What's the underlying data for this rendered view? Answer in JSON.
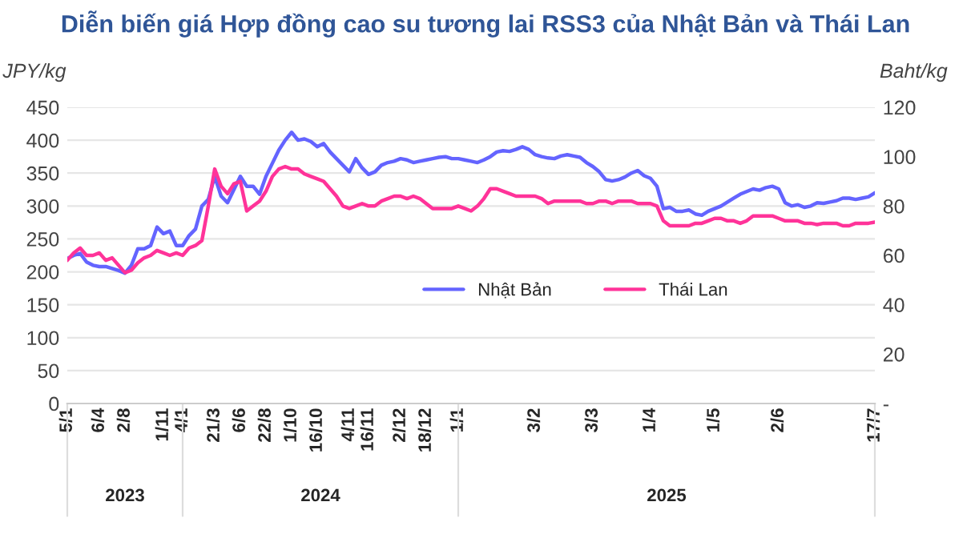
{
  "chart_data": {
    "type": "line",
    "title": "Diễn biến giá Hợp đồng cao su tương lai RSS3 của Nhật Bản và Thái Lan",
    "ylabel": "JPY/kg",
    "y2label": "Baht/kg",
    "categories": [
      "5/1",
      null,
      null,
      null,
      null,
      "6/4",
      null,
      null,
      null,
      "2/8",
      null,
      null,
      null,
      null,
      null,
      "1/11",
      null,
      null,
      "4/1",
      null,
      null,
      null,
      null,
      "21/3",
      null,
      null,
      null,
      "6/6",
      null,
      null,
      null,
      "22/8",
      null,
      null,
      null,
      "1/10",
      null,
      null,
      null,
      "16/10",
      null,
      null,
      null,
      null,
      "4/11",
      null,
      null,
      "16/11",
      null,
      null,
      null,
      null,
      "2/12",
      null,
      null,
      null,
      "18/12",
      null,
      null,
      null,
      null,
      "1/1",
      null,
      null,
      null,
      null,
      null,
      null,
      null,
      null,
      null,
      null,
      null,
      "3/2",
      null,
      null,
      null,
      null,
      null,
      null,
      null,
      null,
      "3/3",
      null,
      null,
      null,
      null,
      null,
      null,
      null,
      null,
      "1/4",
      null,
      null,
      null,
      null,
      null,
      null,
      null,
      null,
      null,
      "1/5",
      null,
      null,
      null,
      null,
      null,
      null,
      null,
      null,
      null,
      "2/6",
      null,
      null,
      null,
      null,
      null,
      null,
      null,
      null,
      null,
      null,
      null,
      null,
      null,
      null,
      "17/7"
    ],
    "annotations": [
      "2023",
      "2024",
      "2025"
    ],
    "series": [
      {
        "name": "Nhật Bản",
        "color": "#6464ff",
        "values": [
          220,
          225,
          228,
          215,
          210,
          208,
          208,
          205,
          202,
          198,
          210,
          235,
          235,
          240,
          268,
          258,
          262,
          240,
          240,
          255,
          265,
          300,
          310,
          345,
          315,
          305,
          325,
          345,
          330,
          330,
          318,
          345,
          365,
          385,
          400,
          412,
          400,
          402,
          398,
          390,
          395,
          382,
          372,
          362,
          352,
          372,
          358,
          348,
          352,
          362,
          366,
          368,
          372,
          370,
          366,
          368,
          370,
          372,
          374,
          375,
          372,
          372,
          370,
          368,
          366,
          370,
          375,
          382,
          384,
          383,
          386,
          390,
          386,
          378,
          375,
          373,
          372,
          376,
          378,
          376,
          374,
          366,
          360,
          352,
          340,
          338,
          340,
          344,
          350,
          354,
          346,
          342,
          330,
          296,
          298,
          292,
          292,
          294,
          288,
          286,
          292,
          296,
          300,
          306,
          312,
          318,
          322,
          326,
          324,
          328,
          330,
          326,
          305,
          300,
          302,
          298,
          300,
          305,
          304,
          306,
          308,
          312,
          312,
          310,
          312,
          314,
          320
        ]
      },
      {
        "name": "Thái Lan",
        "color": "#ff3399",
        "axis": "y2",
        "values": [
          58,
          61,
          63,
          60,
          60,
          61,
          58,
          59,
          56,
          53,
          54,
          57,
          59,
          60,
          62,
          61,
          60,
          61,
          60,
          63,
          64,
          66,
          80,
          95,
          88,
          85,
          89,
          90,
          78,
          80,
          82,
          86,
          92,
          95,
          96,
          95,
          95,
          93,
          92,
          91,
          90,
          87,
          84,
          80,
          79,
          80,
          81,
          80,
          80,
          82,
          83,
          84,
          84,
          83,
          84,
          83,
          81,
          79,
          79,
          79,
          79,
          80,
          79,
          78,
          80,
          83,
          87,
          87,
          86,
          85,
          84,
          84,
          84,
          84,
          83,
          81,
          82,
          82,
          82,
          82,
          82,
          81,
          81,
          82,
          82,
          81,
          82,
          82,
          82,
          81,
          81,
          81,
          80,
          74,
          72,
          72,
          72,
          72,
          73,
          73,
          74,
          75,
          75,
          74,
          74,
          73,
          74,
          76,
          76,
          76,
          76,
          75,
          74,
          74,
          74,
          73,
          73,
          72.5,
          73,
          73,
          73,
          72,
          72,
          73,
          73,
          73,
          73.5
        ]
      }
    ],
    "ylim": [
      0,
      450
    ],
    "yticks": [
      0,
      50,
      100,
      150,
      200,
      250,
      300,
      350,
      400,
      450
    ],
    "y2lim": [
      0,
      120
    ],
    "y2ticks": [
      {
        "value": 0,
        "label": "-"
      },
      20,
      40,
      60,
      80,
      100,
      120
    ],
    "grid": "y",
    "legend": "center",
    "line_style": "solid",
    "marker": "none"
  }
}
